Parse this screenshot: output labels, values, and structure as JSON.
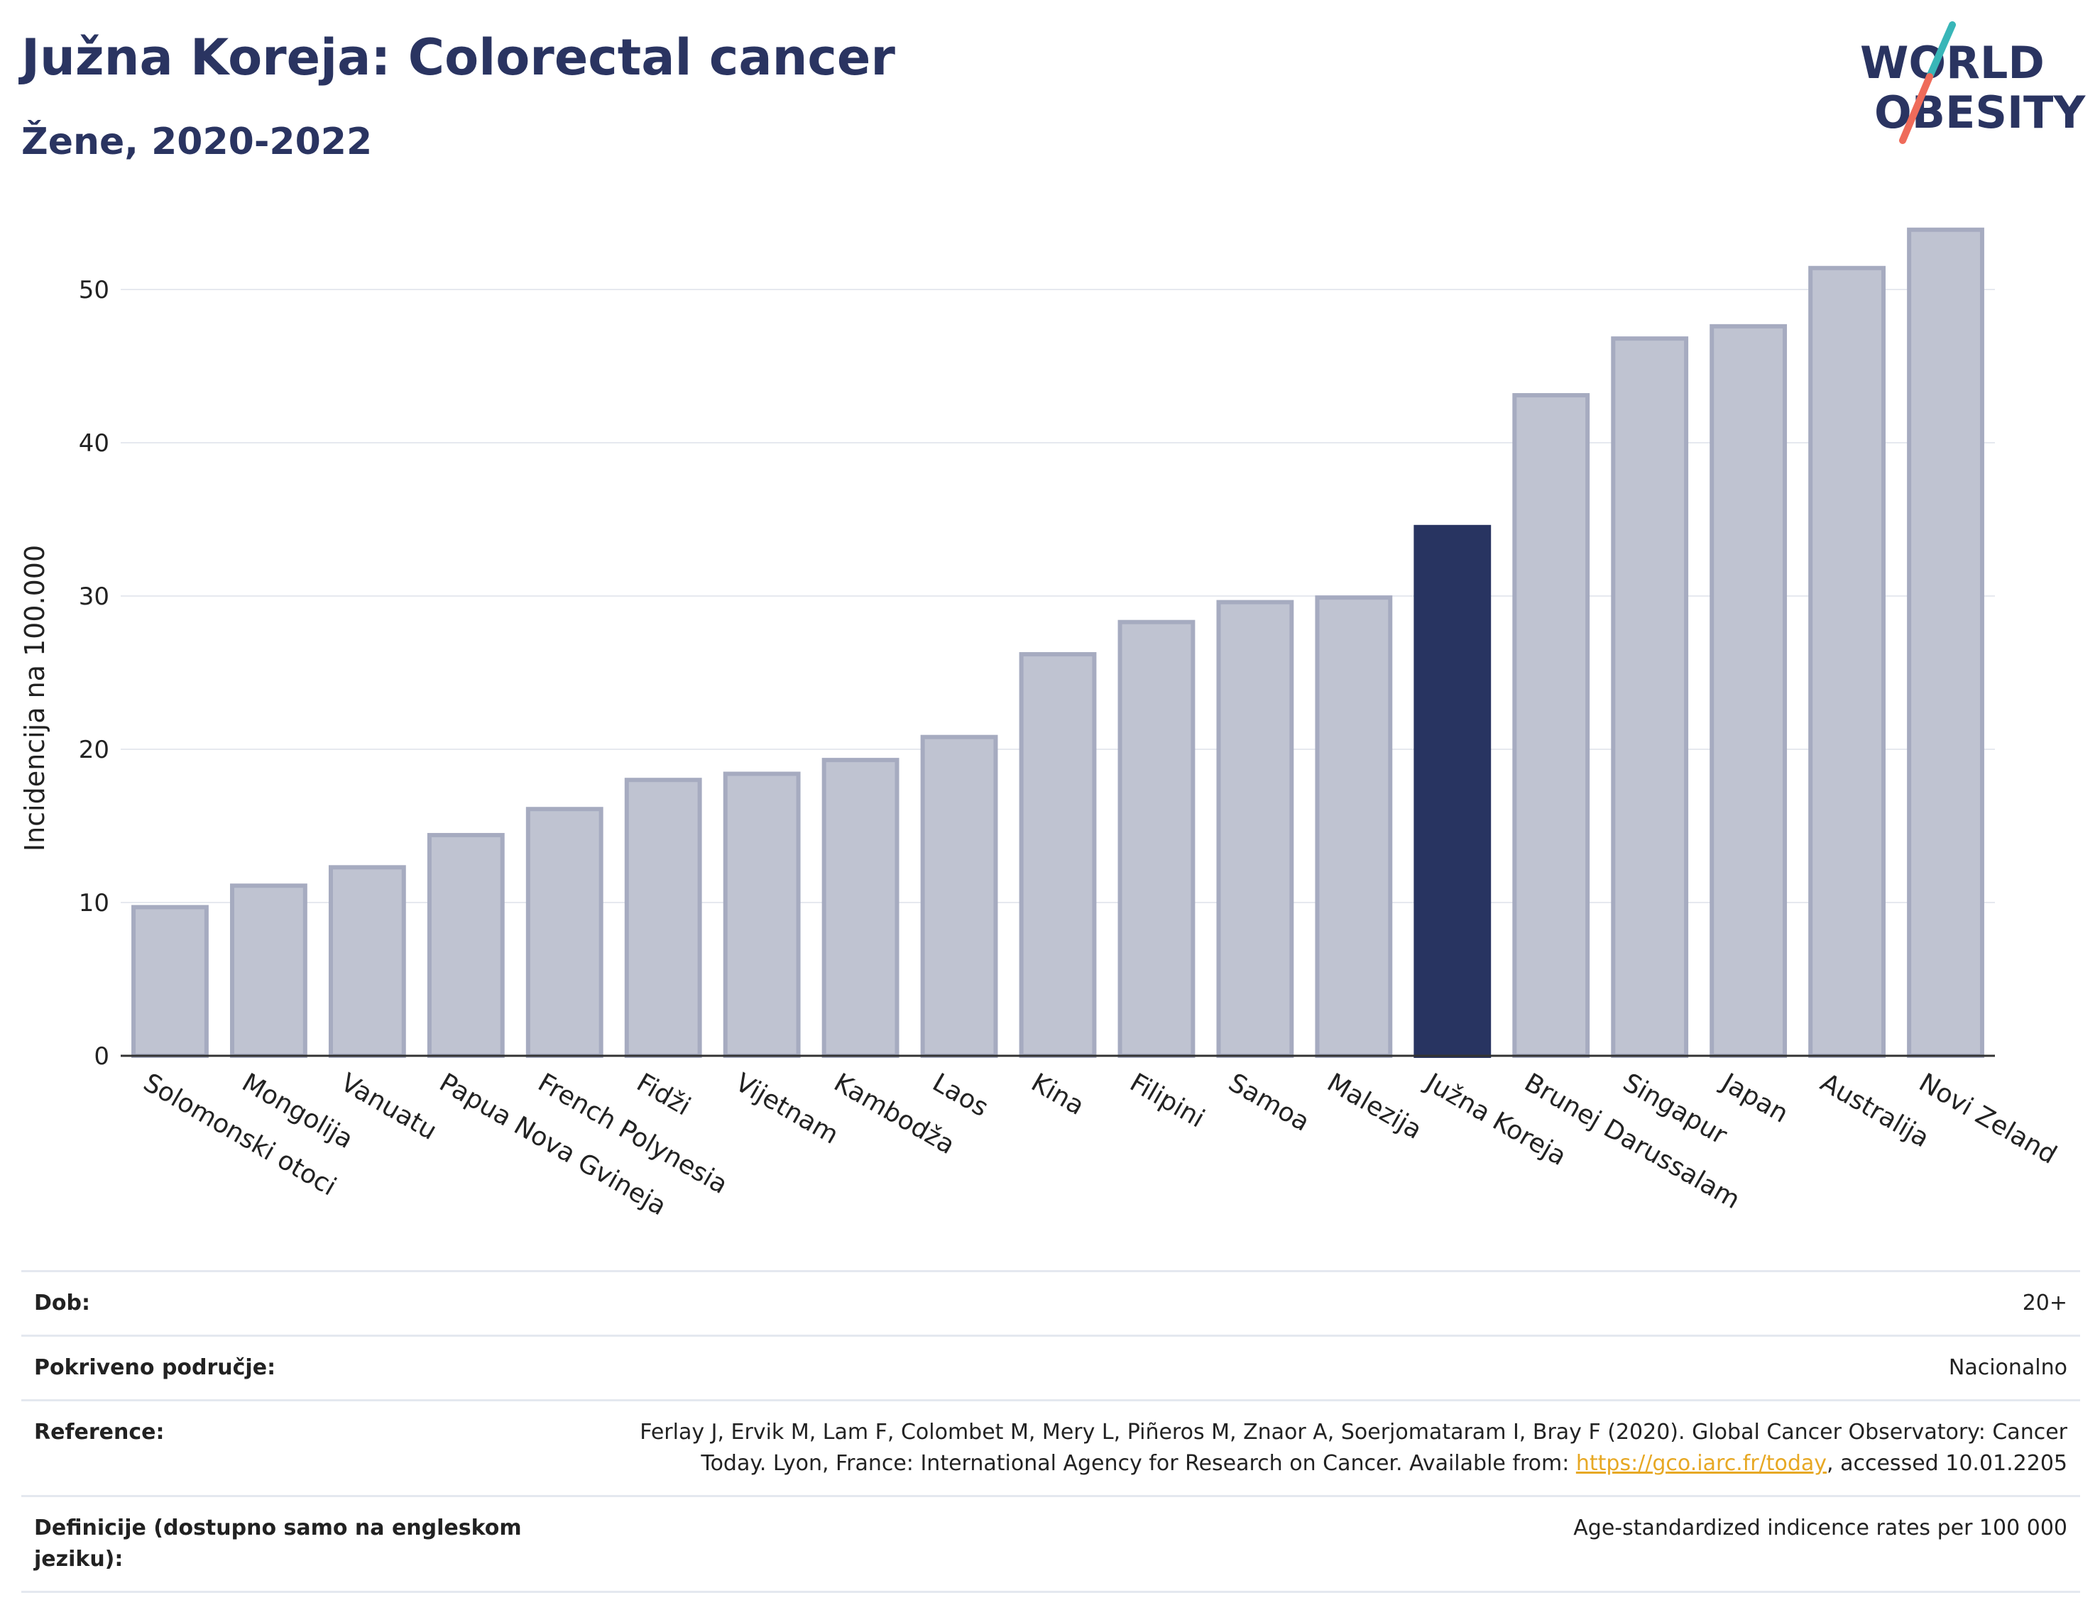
{
  "header": {
    "title": "Južna Koreja: Colorectal cancer",
    "subtitle": "Žene, 2020-2022",
    "logo_line1": "WORLD",
    "logo_line2": "OBESITY"
  },
  "colors": {
    "highlight": "#283461",
    "bar": "#bfc3d1",
    "bar_stroke": "#a6abc0",
    "title": "#2a3461",
    "logo_teal": "#38b6b8",
    "logo_coral": "#ef6b5a",
    "link": "#e7a824"
  },
  "chart_data": {
    "type": "bar",
    "title": "",
    "xlabel": "",
    "ylabel": "Incidencija na 100.000",
    "ylim": [
      0,
      55
    ],
    "yticks": [
      0,
      10,
      20,
      30,
      40,
      50
    ],
    "grid": true,
    "highlight": "Južna Koreja",
    "categories": [
      "Solomonski otoci",
      "Mongolija",
      "Vanuatu",
      "Papua Nova Gvineja",
      "French Polynesia",
      "Fidži",
      "Vijetnam",
      "Kambodža",
      "Laos",
      "Kina",
      "Filipini",
      "Samoa",
      "Malezija",
      "Južna Koreja",
      "Brunej Darussalam",
      "Singapur",
      "Japan",
      "Australija",
      "Novi Zeland"
    ],
    "values": [
      9.7,
      11.1,
      12.3,
      14.4,
      16.1,
      18.0,
      18.4,
      19.3,
      20.8,
      26.2,
      28.3,
      29.6,
      29.9,
      34.5,
      43.1,
      46.8,
      47.6,
      51.4,
      53.9
    ]
  },
  "meta": {
    "rows": [
      {
        "key": "Dob:",
        "value": "20+"
      },
      {
        "key": "Pokriveno područje:",
        "value": "Nacionalno"
      },
      {
        "key": "Reference:",
        "value_pre": "Ferlay J, Ervik M, Lam F, Colombet M, Mery L, Piñeros M, Znaor A, Soerjomataram I, Bray F (2020). Global Cancer Observatory: Cancer Today. Lyon, France: International Agency for Research on Cancer. Available from: ",
        "link": "https://gco.iarc.fr/today",
        "value_post": ", accessed 10.01.2205"
      },
      {
        "key": "Definicije (dostupno samo na engleskom jeziku):",
        "value": "Age-standardized indicence rates per 100 000"
      }
    ]
  }
}
